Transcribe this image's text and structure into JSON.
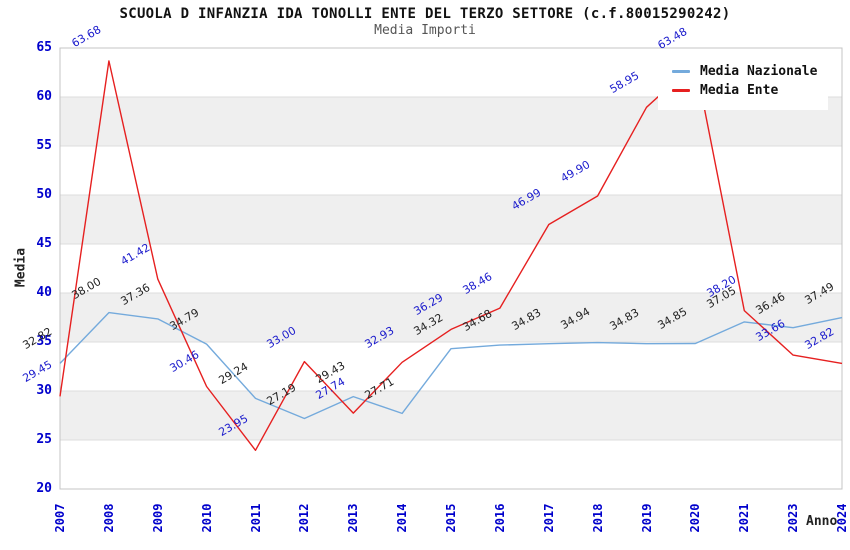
{
  "title": "SCUOLA D INFANZIA IDA TONOLLI ENTE DEL TERZO SETTORE (c.f.80015290242)",
  "subtitle": "Media Importi",
  "colors": {
    "axis_tick_text": "#0000cc",
    "frame_border": "#c4c4c4",
    "gridline": "#dcdcdc",
    "band_gray": "#efefef",
    "title_text": "#111111",
    "subtitle_text": "#555555",
    "nazionale_line": "#74aadc",
    "ente_line": "#e62020",
    "nazionale_point_labels": "#222222",
    "ente_point_labels": "#1a1acc"
  },
  "chart_data": {
    "type": "line",
    "title": "SCUOLA D INFANZIA IDA TONOLLI ENTE DEL TERZO SETTORE (c.f.80015290242)",
    "subtitle": "Media Importi",
    "xlabel": "Anno",
    "ylabel": "Media",
    "categories": [
      "2007",
      "2008",
      "2009",
      "2010",
      "2011",
      "2012",
      "2013",
      "2014",
      "2015",
      "2016",
      "2017",
      "2018",
      "2019",
      "2020",
      "2021",
      "2023",
      "2024"
    ],
    "series": [
      {
        "name": "Media Nazionale",
        "color": "#74aadc",
        "label_color": "#222222",
        "values": [
          32.82,
          38.0,
          37.36,
          34.79,
          29.24,
          27.19,
          29.43,
          27.71,
          34.32,
          34.68,
          34.83,
          34.94,
          34.83,
          34.85,
          37.05,
          36.46,
          37.49
        ]
      },
      {
        "name": "Media Ente",
        "color": "#e62020",
        "label_color": "#1a1acc",
        "values": [
          29.45,
          63.68,
          41.42,
          30.46,
          23.95,
          33.0,
          27.74,
          32.93,
          36.29,
          38.46,
          46.99,
          49.9,
          58.95,
          63.48,
          38.2,
          33.66,
          32.82
        ]
      }
    ],
    "ylim": [
      20,
      65
    ],
    "yticks": [
      20,
      25,
      30,
      35,
      40,
      45,
      50,
      55,
      60,
      65
    ],
    "grid": true,
    "banded_background": true,
    "legend_position": "top-right",
    "point_labels_decimals": 2
  }
}
